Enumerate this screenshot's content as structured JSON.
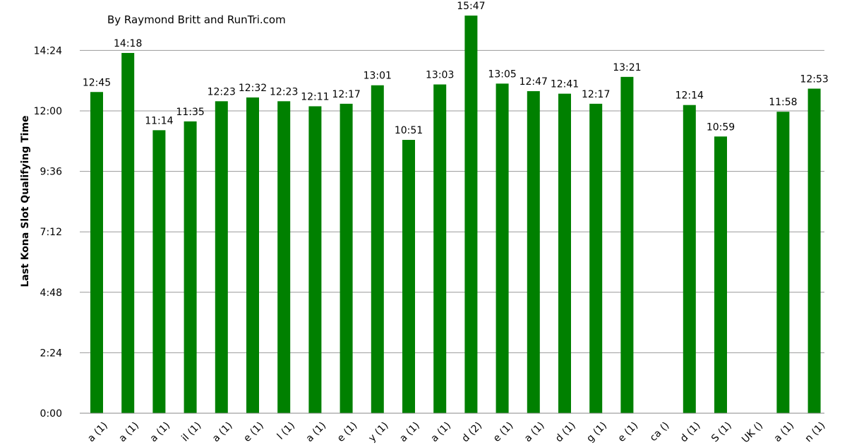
{
  "chart_data": {
    "type": "bar",
    "annotation": "By Raymond Britt and RunTri.com",
    "ylabel": "Last Kona Slot Qualifying Time",
    "ylim_minutes": [
      0,
      960
    ],
    "yticks": [
      "0:00",
      "2:24",
      "4:48",
      "7:12",
      "9:36",
      "12:00",
      "14:24"
    ],
    "ytick_minutes": [
      0,
      144,
      288,
      432,
      576,
      720,
      864
    ],
    "grid": true,
    "bar_color": "#008000",
    "categories": [
      "a (1)",
      "a (1)",
      "a (1)",
      "il (1)",
      "a (1)",
      "e (1)",
      "l (1)",
      "a (1)",
      "e (1)",
      "y (1)",
      "a (1)",
      "a (1)",
      "d (2)",
      "e (1)",
      "a (1)",
      "d (1)",
      "g (1)",
      "e (1)",
      "ca ()",
      "d (1)",
      "S (1)",
      "UK ()",
      "a (1)",
      "n (1)"
    ],
    "labels": [
      "12:45",
      "14:18",
      "11:14",
      "11:35",
      "12:23",
      "12:32",
      "12:23",
      "12:11",
      "12:17",
      "13:01",
      "10:51",
      "13:03",
      "15:47",
      "13:05",
      "12:47",
      "12:41",
      "12:17",
      "13:21",
      "",
      "12:14",
      "10:59",
      "",
      "11:58",
      "12:53"
    ],
    "values_minutes": [
      765,
      858,
      674,
      695,
      743,
      752,
      743,
      731,
      737,
      781,
      651,
      783,
      947,
      785,
      767,
      761,
      737,
      801,
      null,
      734,
      659,
      null,
      718,
      773
    ]
  }
}
